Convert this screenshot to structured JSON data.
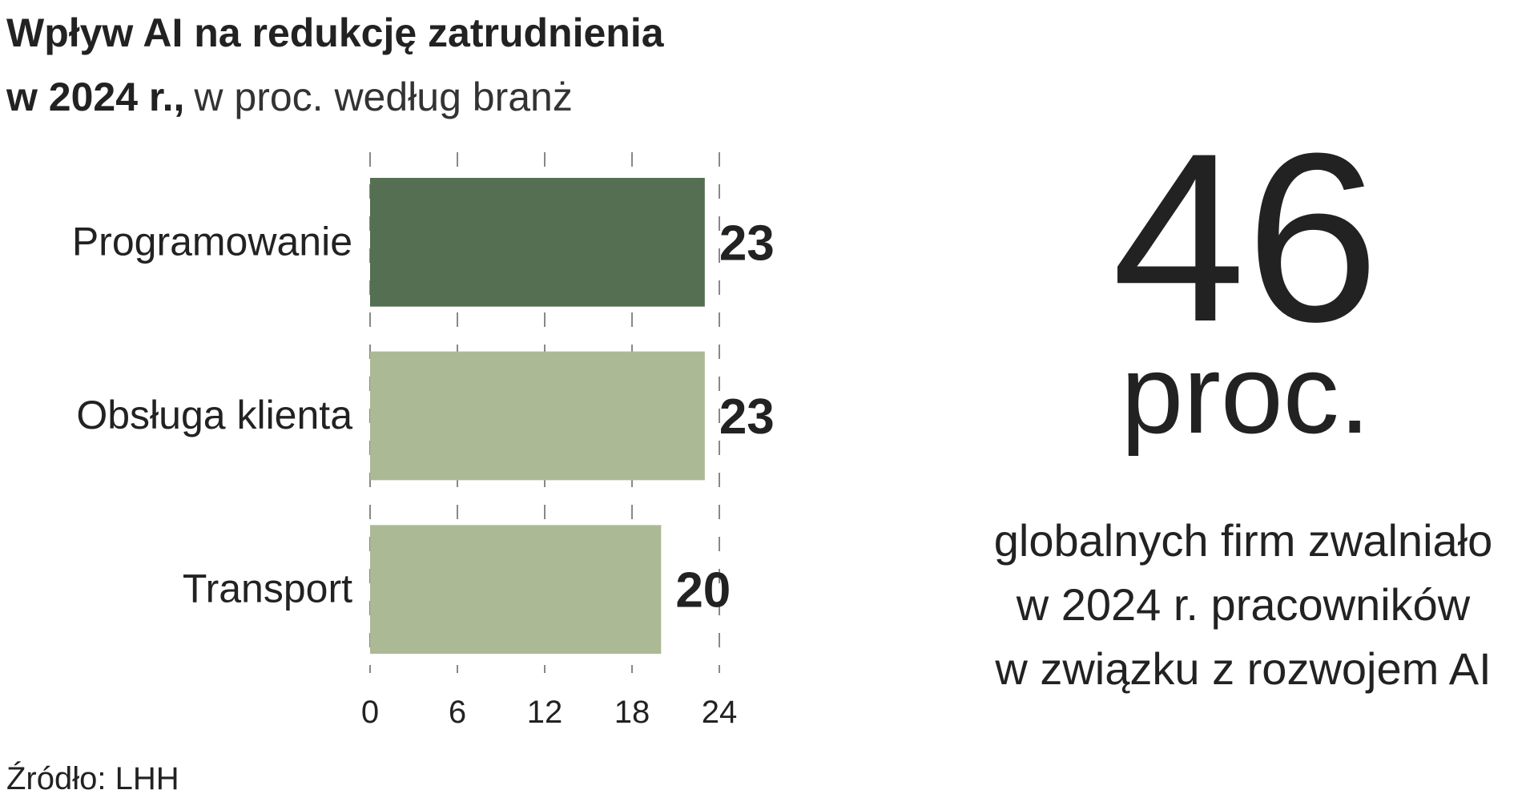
{
  "chart_data": {
    "type": "bar",
    "orientation": "horizontal",
    "title": [
      "Wpływ AI na redukcję zatrudnienia",
      "w 2024 r.,"
    ],
    "subtitle": "w proc. według branż",
    "categories": [
      "Programowanie",
      "Obsługa klienta",
      "Transport"
    ],
    "values": [
      23,
      23,
      20
    ],
    "colors": [
      "#556f52",
      "#acb995",
      "#acb995"
    ],
    "xlim": [
      0,
      24
    ],
    "xticks": [
      0,
      6,
      12,
      18,
      24
    ],
    "grid": true,
    "highlight": {
      "value": 46,
      "unit": "proc.",
      "color": "#5b7457",
      "text": [
        "globalnych firm zwalniało",
        "w 2024 r. pracowników",
        "w związku z rozwojem AI"
      ]
    },
    "source": "Źródło: LHH"
  }
}
